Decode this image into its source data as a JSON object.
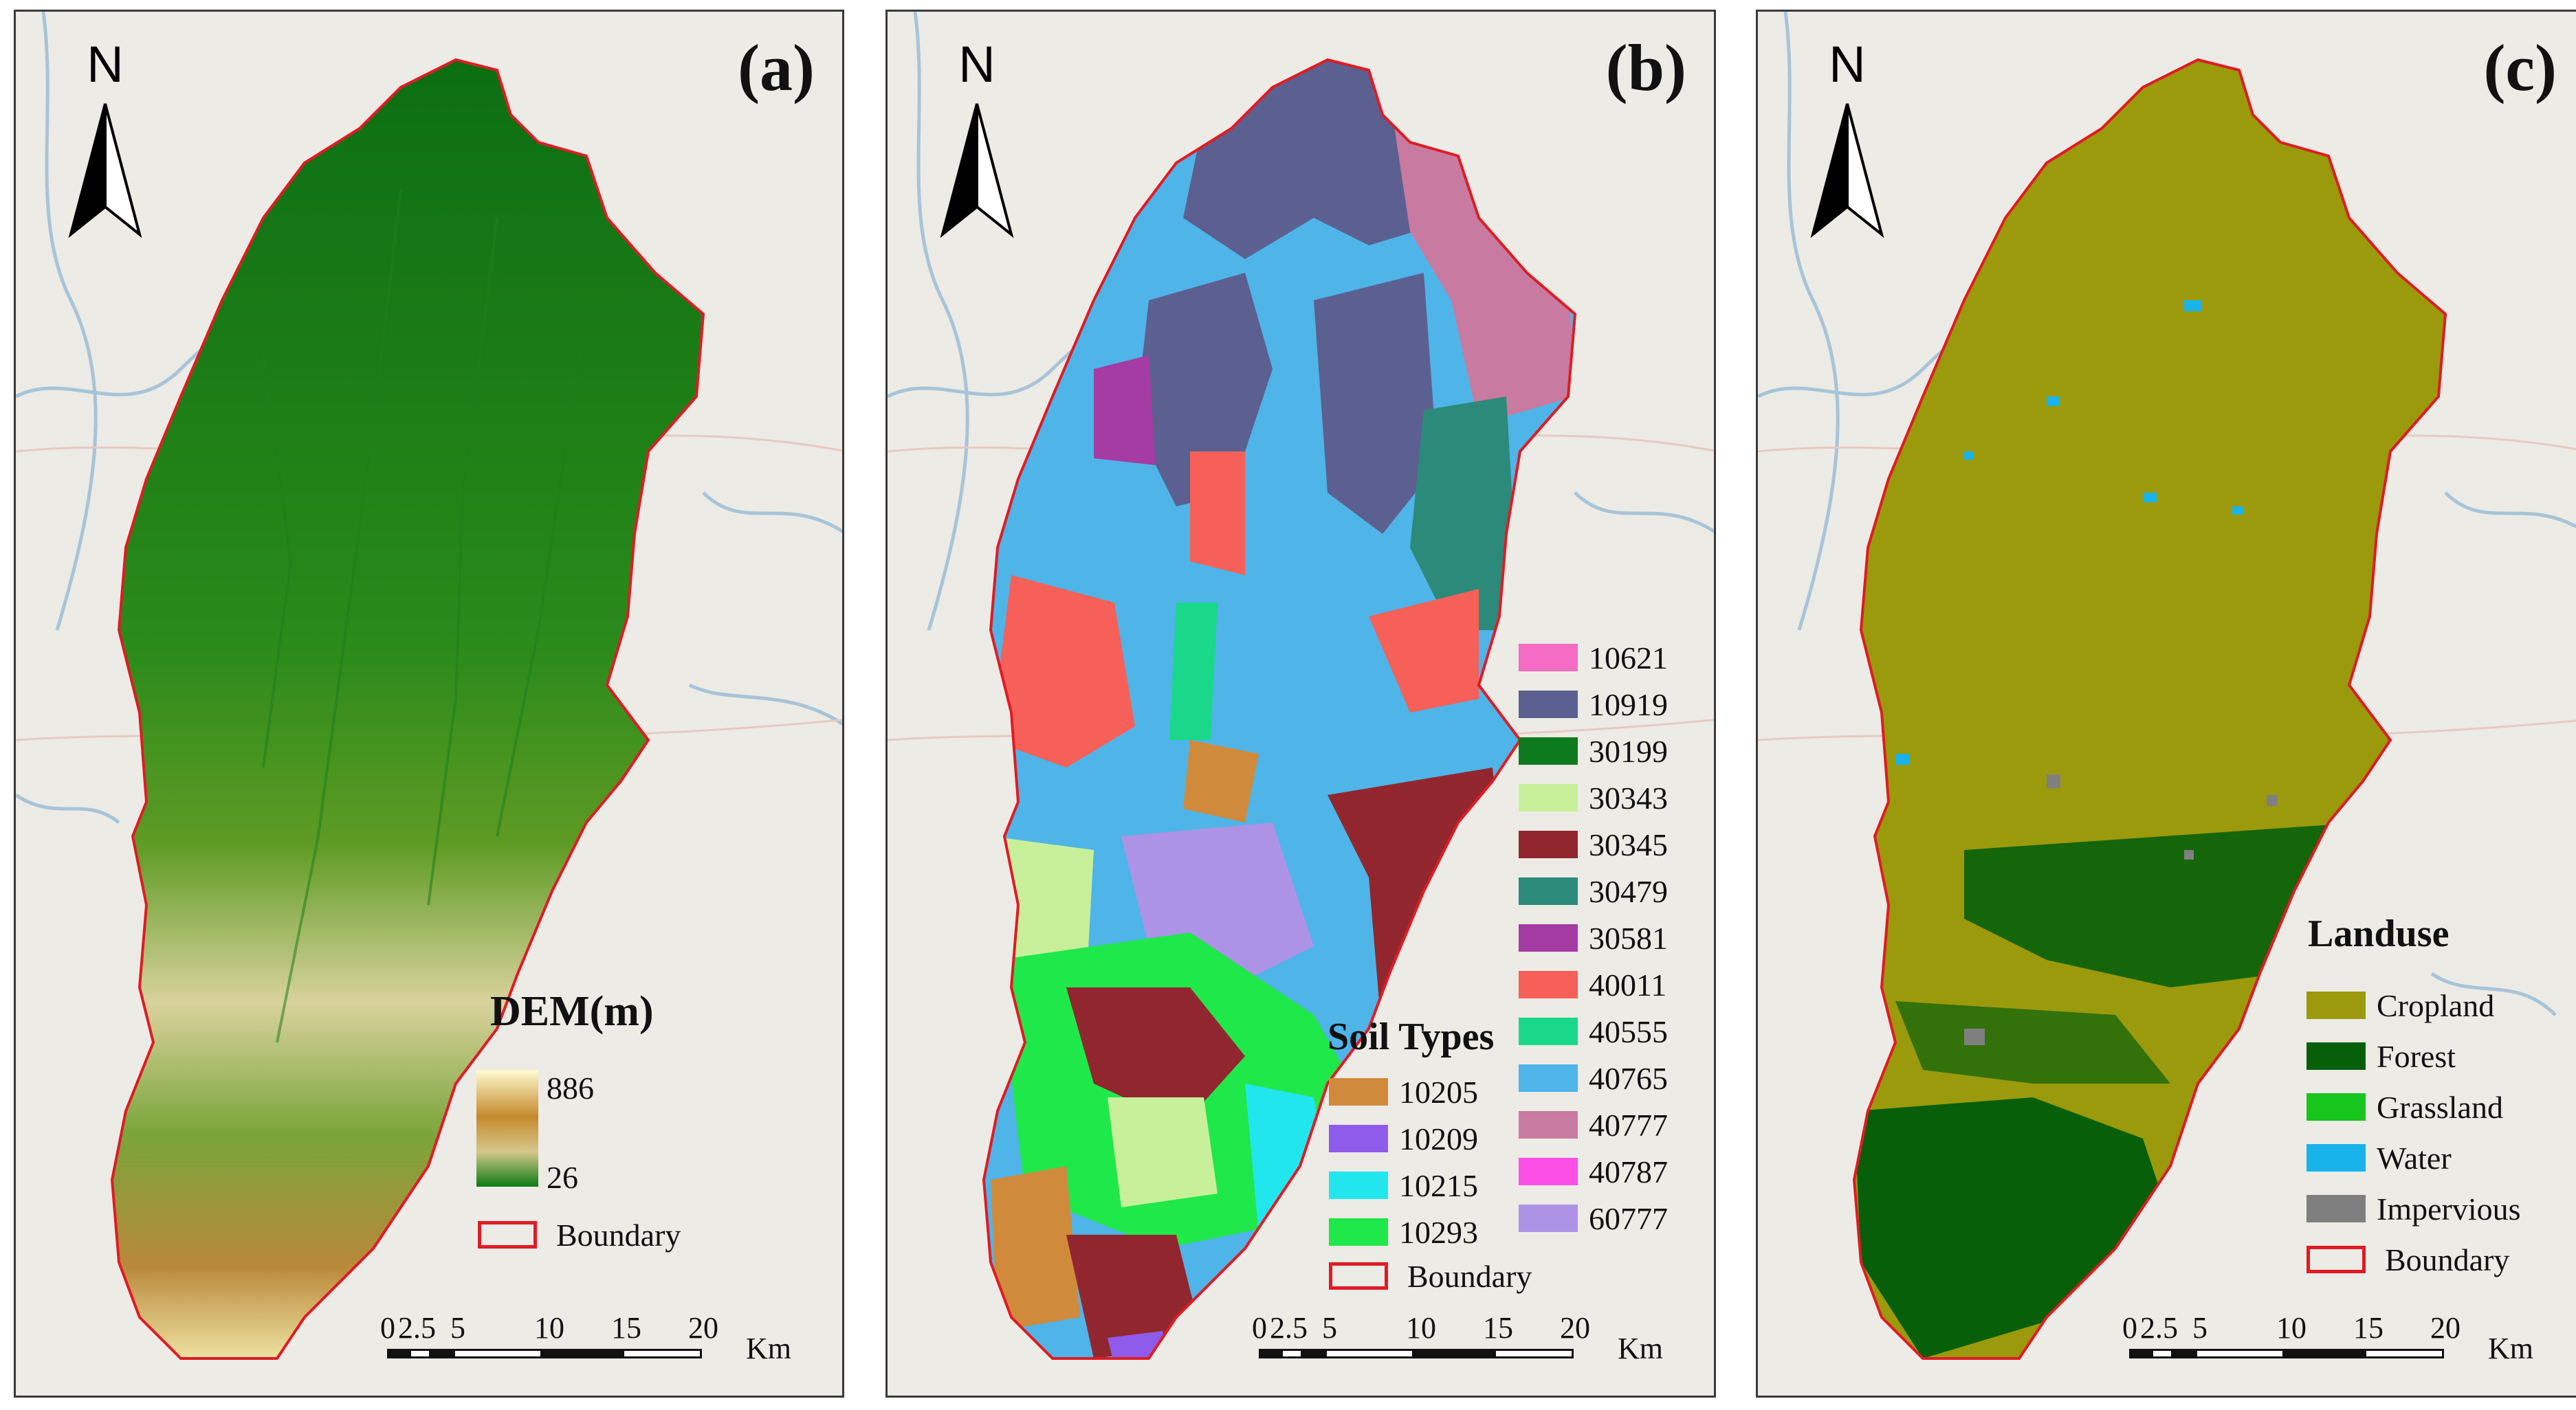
{
  "panels": {
    "a": {
      "label": "(a)",
      "north": "N",
      "legend_title": "DEM(m)",
      "dem_max": "886",
      "dem_min": "26",
      "boundary": "Boundary",
      "scale_ticks": [
        "0",
        "2.5",
        "5",
        "10",
        "15",
        "20"
      ],
      "scale_unit": "Km"
    },
    "b": {
      "label": "(b)",
      "north": "N",
      "legend_title": "Soil Types",
      "soil_left": [
        {
          "code": "10205",
          "color": "#d08a3c"
        },
        {
          "code": "10209",
          "color": "#8f5bea"
        },
        {
          "code": "10215",
          "color": "#22e6ee"
        },
        {
          "code": "10293",
          "color": "#1fe84a"
        }
      ],
      "soil_right": [
        {
          "code": "10621",
          "color": "#f56cc5"
        },
        {
          "code": "10919",
          "color": "#5b6090"
        },
        {
          "code": "30199",
          "color": "#0e7a1e"
        },
        {
          "code": "30343",
          "color": "#c8f09b"
        },
        {
          "code": "30345",
          "color": "#92262f"
        },
        {
          "code": "30479",
          "color": "#2b8a7a"
        },
        {
          "code": "30581",
          "color": "#a43ca3"
        },
        {
          "code": "40011",
          "color": "#f66058"
        },
        {
          "code": "40555",
          "color": "#19d88a"
        },
        {
          "code": "40765",
          "color": "#4fb4e8"
        },
        {
          "code": "40777",
          "color": "#c97aa0"
        },
        {
          "code": "40787",
          "color": "#fb4fe7"
        },
        {
          "code": "60777",
          "color": "#ad93e6"
        }
      ],
      "boundary": "Boundary",
      "scale_ticks": [
        "0",
        "2.5",
        "5",
        "10",
        "15",
        "20"
      ],
      "scale_unit": "Km"
    },
    "c": {
      "label": "(c)",
      "north": "N",
      "legend_title": "Landuse",
      "classes": [
        {
          "name": "Cropland",
          "color": "#9a9a0c"
        },
        {
          "name": "Forest",
          "color": "#075f0a"
        },
        {
          "name": "Grassland",
          "color": "#16c61c"
        },
        {
          "name": "Water",
          "color": "#18b3ea"
        },
        {
          "name": "Impervious",
          "color": "#7f7f7f"
        }
      ],
      "boundary": "Boundary",
      "scale_ticks": [
        "0",
        "2.5",
        "5",
        "10",
        "15",
        "20"
      ],
      "scale_unit": "Km"
    }
  },
  "colors": {
    "boundary": "#e01b24",
    "basemap": "#ecebe6",
    "rivers": "#a8c4d8"
  },
  "icons": {
    "north_arrow": "north-arrow-icon"
  }
}
